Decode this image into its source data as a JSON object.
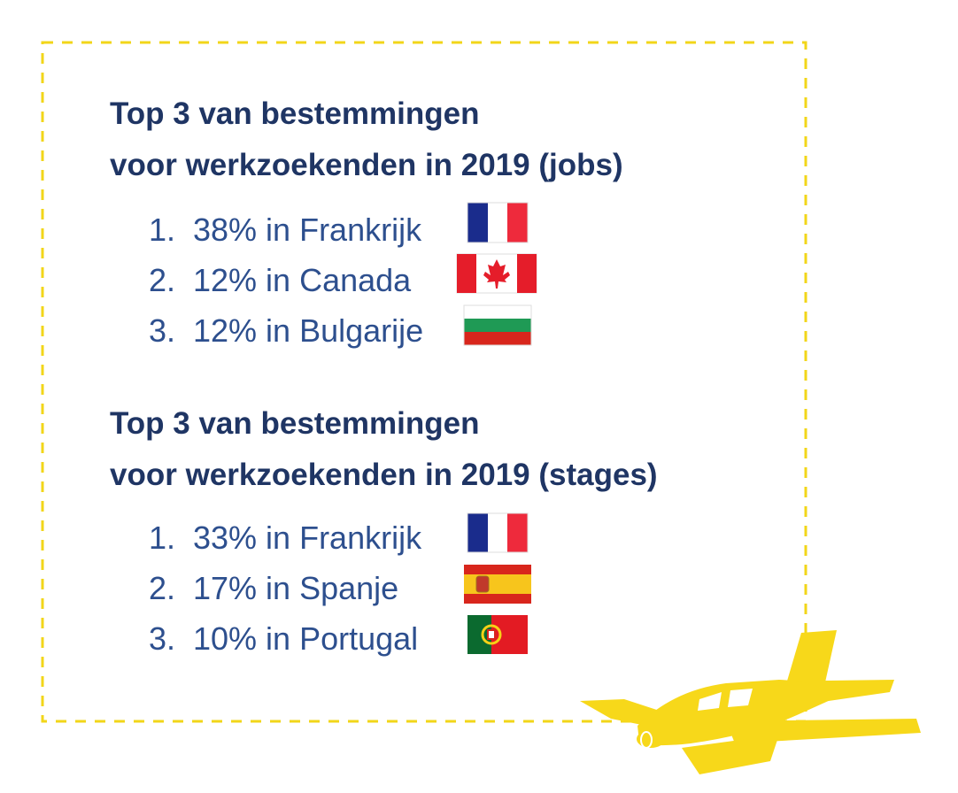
{
  "sections": [
    {
      "title_lines": [
        "Top 3 van bestemmingen",
        "voor werkzoekenden in 2019 (jobs)"
      ],
      "items": [
        {
          "rank": "1.",
          "text": "38% in Frankrijk"
        },
        {
          "rank": "2.",
          "text": "12% in Canada"
        },
        {
          "rank": "3.",
          "text": "12% in Bulgarije"
        }
      ]
    },
    {
      "title_lines": [
        "Top 3 van bestemmingen",
        "voor werkzoekenden in 2019 (stages)"
      ],
      "items": [
        {
          "rank": "1.",
          "text": "33% in Frankrijk"
        },
        {
          "rank": "2.",
          "text": "17% in Spanje"
        },
        {
          "rank": "3.",
          "text": "10% in Portugal"
        }
      ]
    }
  ]
}
